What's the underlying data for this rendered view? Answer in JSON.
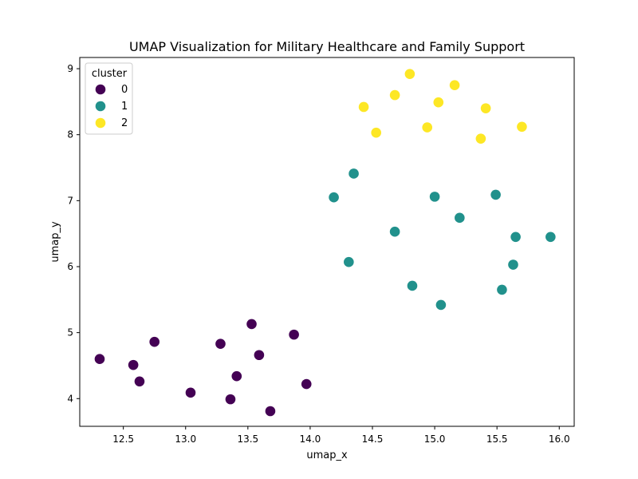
{
  "chart_data": {
    "type": "scatter",
    "title": "UMAP Visualization for Military Healthcare and Family Support",
    "xlabel": "umap_x",
    "ylabel": "umap_y",
    "xlim": [
      12.15,
      16.12
    ],
    "ylim": [
      3.58,
      9.17
    ],
    "xticks": [
      12.5,
      13.0,
      13.5,
      14.0,
      14.5,
      15.0,
      15.5,
      16.0
    ],
    "xtick_labels": [
      "12.5",
      "13.0",
      "13.5",
      "14.0",
      "14.5",
      "15.0",
      "15.5",
      "16.0"
    ],
    "yticks": [
      4,
      5,
      6,
      7,
      8,
      9
    ],
    "ytick_labels": [
      "4",
      "5",
      "6",
      "7",
      "8",
      "9"
    ],
    "grid": false,
    "legend": {
      "title": "cluster",
      "placement": "top-left"
    },
    "series": [
      {
        "name": "0",
        "color": "#440154",
        "points": [
          [
            12.31,
            4.6
          ],
          [
            12.58,
            4.51
          ],
          [
            12.63,
            4.26
          ],
          [
            12.75,
            4.86
          ],
          [
            13.04,
            4.09
          ],
          [
            13.28,
            4.83
          ],
          [
            13.36,
            3.99
          ],
          [
            13.41,
            4.34
          ],
          [
            13.53,
            5.13
          ],
          [
            13.59,
            4.66
          ],
          [
            13.68,
            3.81
          ],
          [
            13.87,
            4.97
          ],
          [
            13.97,
            4.22
          ]
        ]
      },
      {
        "name": "1",
        "color": "#21918c",
        "points": [
          [
            14.19,
            7.05
          ],
          [
            14.35,
            7.41
          ],
          [
            14.31,
            6.07
          ],
          [
            14.68,
            6.53
          ],
          [
            14.82,
            5.71
          ],
          [
            15.0,
            7.06
          ],
          [
            15.05,
            5.42
          ],
          [
            15.2,
            6.74
          ],
          [
            15.49,
            7.09
          ],
          [
            15.54,
            5.65
          ],
          [
            15.63,
            6.03
          ],
          [
            15.65,
            6.45
          ],
          [
            15.93,
            6.45
          ]
        ]
      },
      {
        "name": "2",
        "color": "#fde725",
        "points": [
          [
            14.43,
            8.42
          ],
          [
            14.53,
            8.03
          ],
          [
            14.68,
            8.6
          ],
          [
            14.8,
            8.92
          ],
          [
            14.94,
            8.11
          ],
          [
            15.03,
            8.49
          ],
          [
            15.16,
            8.75
          ],
          [
            15.37,
            7.94
          ],
          [
            15.41,
            8.4
          ],
          [
            15.7,
            8.12
          ]
        ]
      }
    ]
  }
}
